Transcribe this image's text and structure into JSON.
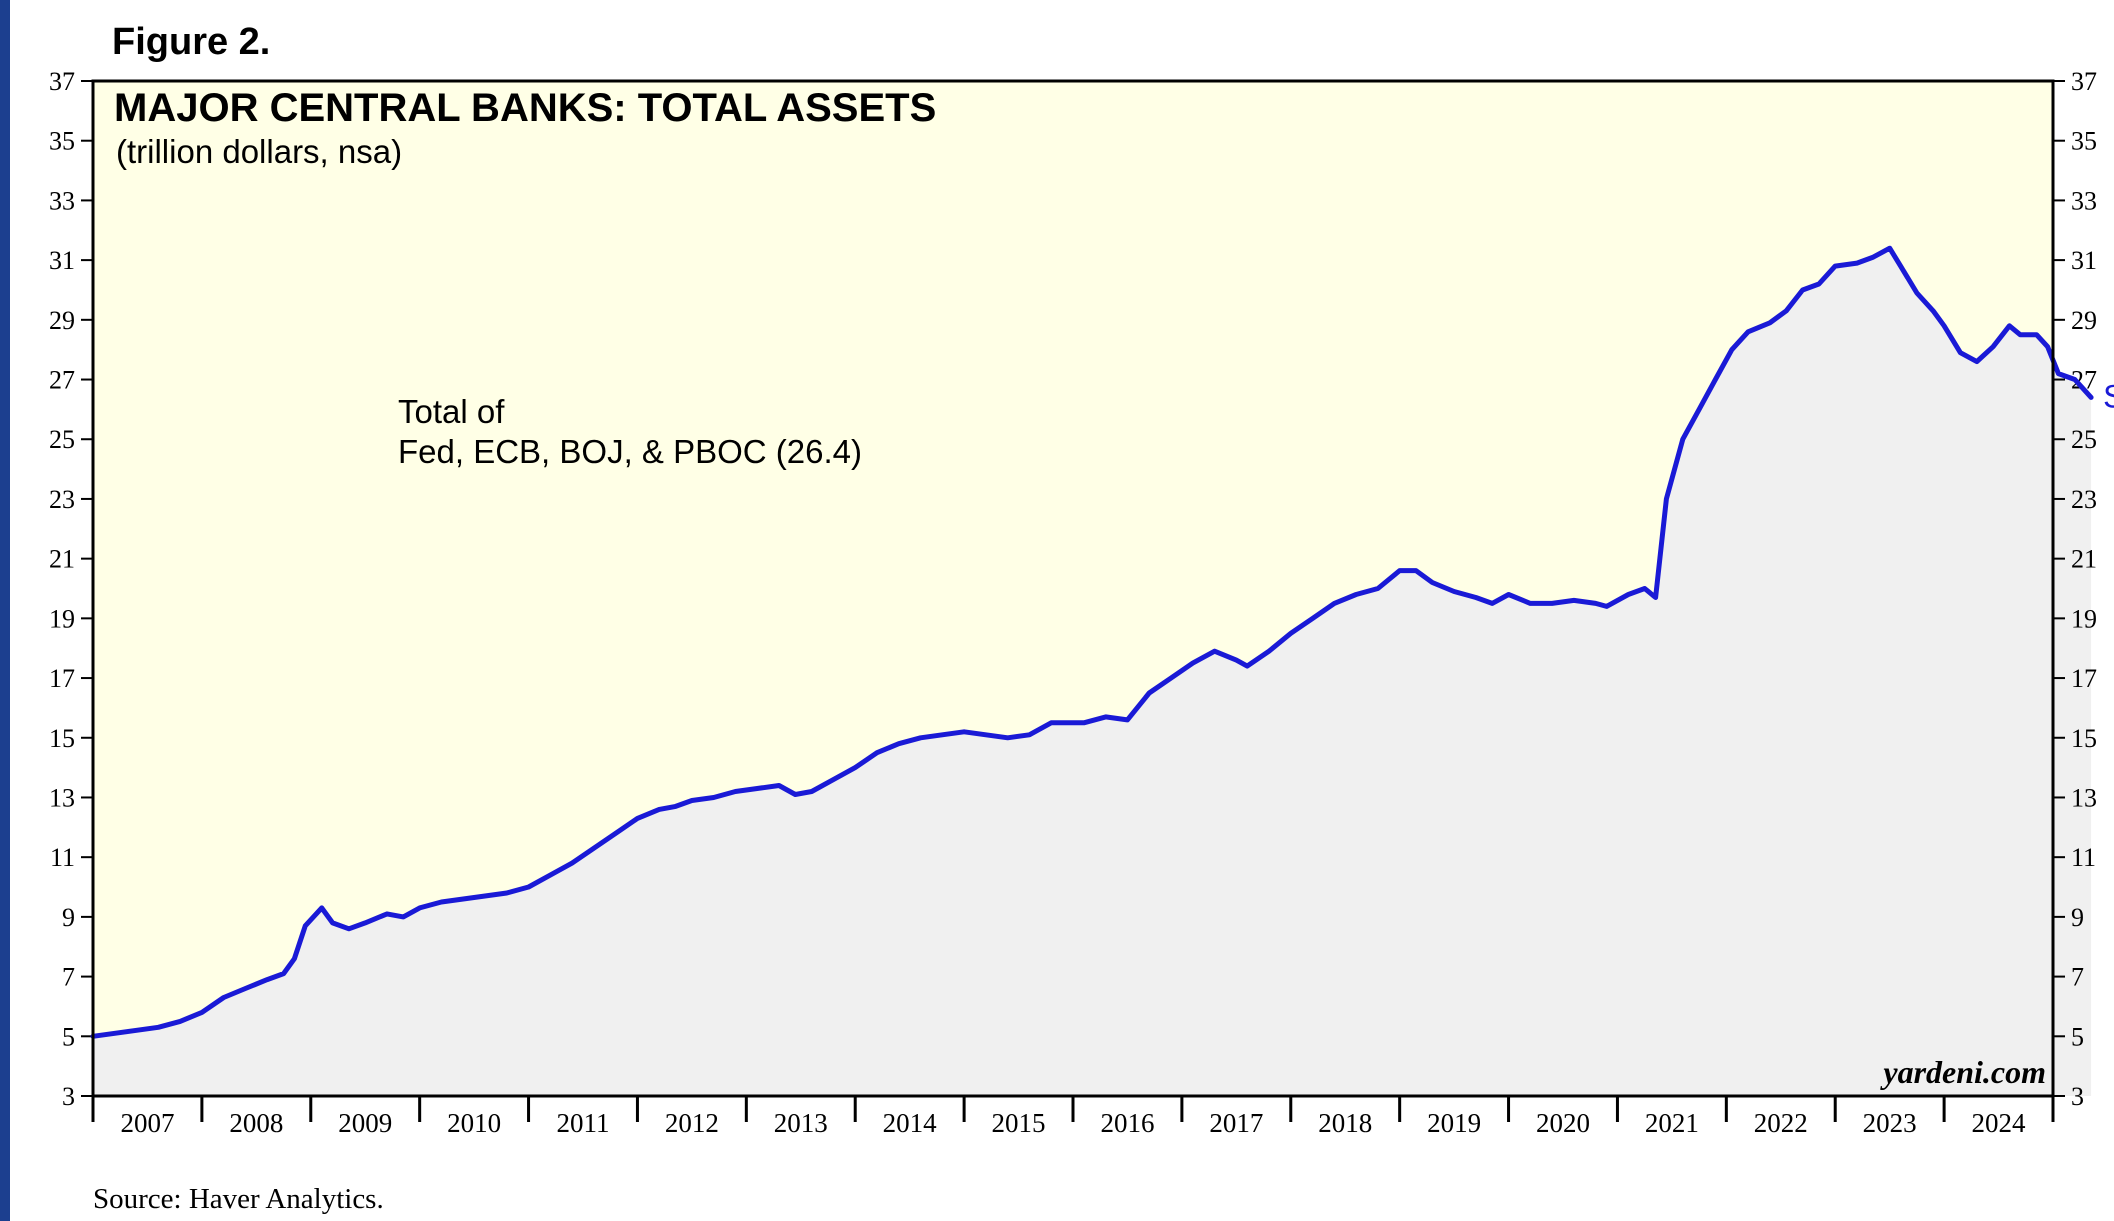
{
  "figure_label": "Figure 2.",
  "source": "Source: Haver Analytics.",
  "watermark": "yardeni.com",
  "colors": {
    "line": "#1a1ad6",
    "plot_background": "#ffffe6",
    "area_fill": "#f0f0f0",
    "frame_border": "#1c3f8f"
  },
  "chart_data": {
    "type": "line",
    "title": "MAJOR CENTRAL BANKS: TOTAL ASSETS",
    "subtitle": "(trillion dollars, nsa)",
    "annotation": {
      "line1": "Total of",
      "line2": "Fed, ECB, BOJ, & PBOC (26.4)"
    },
    "end_label": "Sep",
    "ylim": [
      3,
      37
    ],
    "yticks": [
      3,
      5,
      7,
      9,
      11,
      13,
      15,
      17,
      19,
      21,
      23,
      25,
      27,
      29,
      31,
      33,
      35,
      37
    ],
    "xlim": [
      2007.0,
      2025.0
    ],
    "xtick_labels": [
      "2007",
      "2008",
      "2009",
      "2010",
      "2011",
      "2012",
      "2013",
      "2014",
      "2015",
      "2016",
      "2017",
      "2018",
      "2019",
      "2020",
      "2021",
      "2022",
      "2023",
      "2024"
    ],
    "grid": false,
    "legend": "none",
    "series": [
      {
        "points": [
          [
            2007.0,
            5.0
          ],
          [
            2007.2,
            5.1
          ],
          [
            2007.4,
            5.2
          ],
          [
            2007.6,
            5.3
          ],
          [
            2007.8,
            5.5
          ],
          [
            2008.0,
            5.8
          ],
          [
            2008.2,
            6.3
          ],
          [
            2008.4,
            6.6
          ],
          [
            2008.6,
            6.9
          ],
          [
            2008.75,
            7.1
          ],
          [
            2008.85,
            7.6
          ],
          [
            2008.95,
            8.7
          ],
          [
            2009.1,
            9.3
          ],
          [
            2009.2,
            8.8
          ],
          [
            2009.35,
            8.6
          ],
          [
            2009.5,
            8.8
          ],
          [
            2009.7,
            9.1
          ],
          [
            2009.85,
            9.0
          ],
          [
            2010.0,
            9.3
          ],
          [
            2010.2,
            9.5
          ],
          [
            2010.4,
            9.6
          ],
          [
            2010.6,
            9.7
          ],
          [
            2010.8,
            9.8
          ],
          [
            2011.0,
            10.0
          ],
          [
            2011.2,
            10.4
          ],
          [
            2011.4,
            10.8
          ],
          [
            2011.6,
            11.3
          ],
          [
            2011.8,
            11.8
          ],
          [
            2012.0,
            12.3
          ],
          [
            2012.2,
            12.6
          ],
          [
            2012.35,
            12.7
          ],
          [
            2012.5,
            12.9
          ],
          [
            2012.7,
            13.0
          ],
          [
            2012.9,
            13.2
          ],
          [
            2013.1,
            13.3
          ],
          [
            2013.3,
            13.4
          ],
          [
            2013.45,
            13.1
          ],
          [
            2013.6,
            13.2
          ],
          [
            2013.8,
            13.6
          ],
          [
            2014.0,
            14.0
          ],
          [
            2014.2,
            14.5
          ],
          [
            2014.4,
            14.8
          ],
          [
            2014.6,
            15.0
          ],
          [
            2014.8,
            15.1
          ],
          [
            2015.0,
            15.2
          ],
          [
            2015.2,
            15.1
          ],
          [
            2015.4,
            15.0
          ],
          [
            2015.6,
            15.1
          ],
          [
            2015.8,
            15.5
          ],
          [
            2016.0,
            15.5
          ],
          [
            2016.1,
            15.5
          ],
          [
            2016.3,
            15.7
          ],
          [
            2016.5,
            15.6
          ],
          [
            2016.7,
            16.5
          ],
          [
            2016.9,
            17.0
          ],
          [
            2017.1,
            17.5
          ],
          [
            2017.3,
            17.9
          ],
          [
            2017.5,
            17.6
          ],
          [
            2017.6,
            17.4
          ],
          [
            2017.8,
            17.9
          ],
          [
            2018.0,
            18.5
          ],
          [
            2018.2,
            19.0
          ],
          [
            2018.4,
            19.5
          ],
          [
            2018.6,
            19.8
          ],
          [
            2018.8,
            20.0
          ],
          [
            2019.0,
            20.6
          ],
          [
            2019.15,
            20.6
          ],
          [
            2019.3,
            20.2
          ],
          [
            2019.5,
            19.9
          ],
          [
            2019.7,
            19.7
          ],
          [
            2019.85,
            19.5
          ],
          [
            2020.0,
            19.8
          ],
          [
            2020.2,
            19.5
          ],
          [
            2020.4,
            19.5
          ],
          [
            2020.6,
            19.6
          ],
          [
            2020.8,
            19.5
          ],
          [
            2020.9,
            19.4
          ],
          [
            2021.1,
            19.8
          ],
          [
            2021.25,
            20.0
          ],
          [
            2021.35,
            19.7
          ],
          [
            2021.45,
            23.0
          ],
          [
            2021.6,
            25.0
          ],
          [
            2021.75,
            26.0
          ],
          [
            2021.9,
            27.0
          ],
          [
            2022.05,
            28.0
          ],
          [
            2022.2,
            28.6
          ],
          [
            2022.4,
            28.9
          ],
          [
            2022.55,
            29.3
          ],
          [
            2022.7,
            30.0
          ],
          [
            2022.85,
            30.2
          ],
          [
            2023.0,
            30.8
          ],
          [
            2023.2,
            30.9
          ],
          [
            2023.35,
            31.1
          ],
          [
            2023.5,
            31.4
          ],
          [
            2023.6,
            30.8
          ],
          [
            2023.75,
            29.9
          ],
          [
            2023.9,
            29.3
          ],
          [
            2024.0,
            28.8
          ],
          [
            2024.15,
            27.9
          ],
          [
            2024.3,
            27.6
          ],
          [
            2024.45,
            28.1
          ],
          [
            2024.6,
            28.8
          ],
          [
            2024.7,
            28.5
          ],
          [
            2024.85,
            28.5
          ],
          [
            2024.95,
            28.1
          ],
          [
            2025.05,
            27.2
          ],
          [
            2025.2,
            27.0
          ],
          [
            2025.35,
            26.4
          ]
        ]
      }
    ]
  }
}
